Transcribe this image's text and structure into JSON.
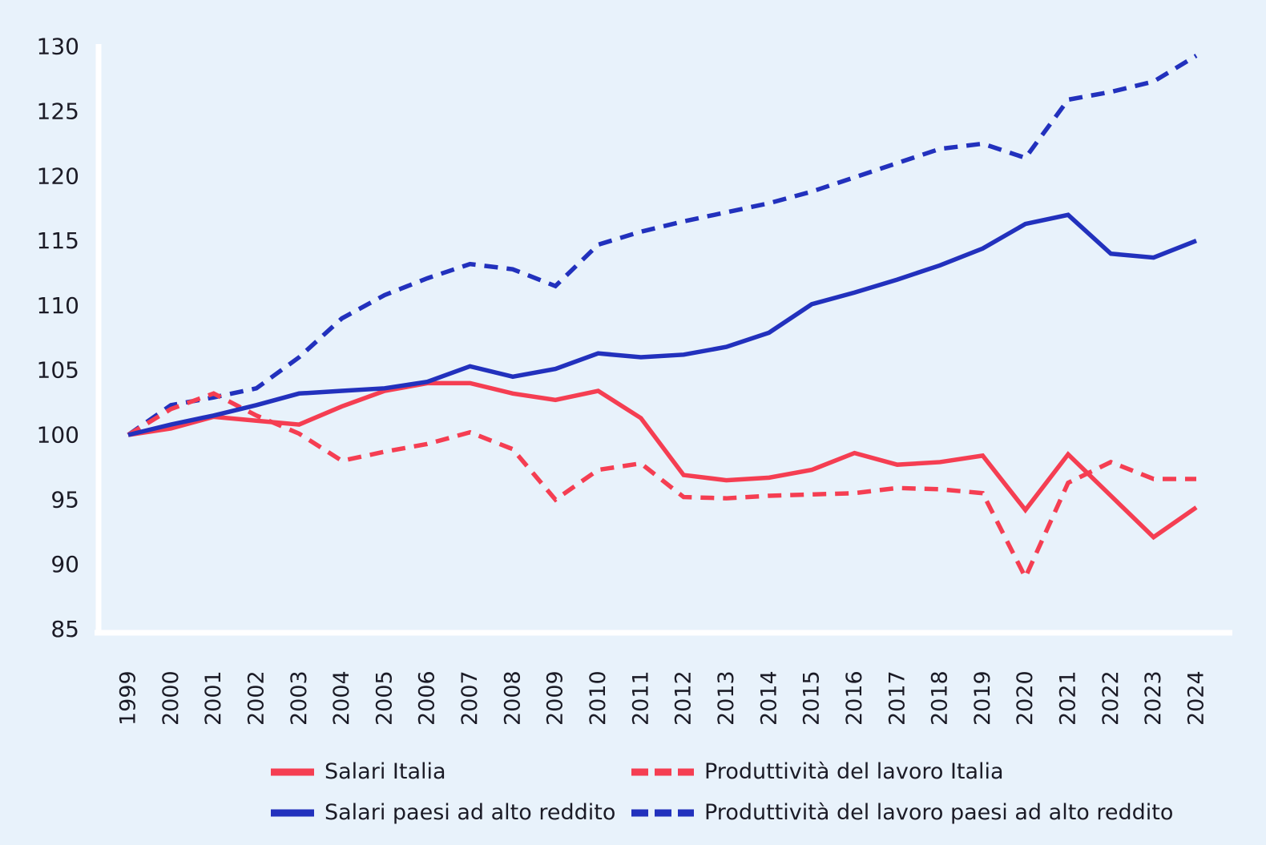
{
  "figure": {
    "background_color": "#e8f2fb",
    "axis_line_color": "#ffffff",
    "text_color": "#1b1b26",
    "red_color": "#f53e52",
    "blue_color": "#2231bd"
  },
  "axes": {
    "y_ticks": [
      130,
      125,
      120,
      115,
      110,
      105,
      100,
      95,
      90,
      85
    ],
    "ylim": [
      85,
      130
    ],
    "grid": false,
    "legend_position": "bottom"
  },
  "chart_data": {
    "type": "line",
    "title": "",
    "xlabel": "",
    "ylabel": "",
    "x": [
      1999,
      2000,
      2001,
      2002,
      2003,
      2004,
      2005,
      2006,
      2007,
      2008,
      2009,
      2010,
      2011,
      2012,
      2013,
      2014,
      2015,
      2016,
      2017,
      2018,
      2019,
      2020,
      2021,
      2022,
      2023,
      2024
    ],
    "ylim": [
      85,
      130
    ],
    "series": [
      {
        "name": "Salari Italia",
        "color": "#f53e52",
        "style": "solid",
        "values": [
          100,
          100.5,
          101.4,
          101.1,
          100.8,
          102.2,
          103.4,
          104.0,
          104.0,
          103.2,
          102.7,
          103.4,
          101.3,
          96.9,
          96.5,
          96.7,
          97.3,
          98.6,
          97.7,
          97.9,
          98.4,
          94.2,
          98.5,
          95.3,
          92.1,
          94.4
        ]
      },
      {
        "name": "Produttività del lavoro Italia",
        "color": "#f53e52",
        "style": "dashed",
        "values": [
          100,
          102.0,
          103.2,
          101.5,
          100.1,
          98.0,
          98.7,
          99.3,
          100.2,
          98.9,
          95.0,
          97.3,
          97.8,
          95.2,
          95.1,
          95.3,
          95.4,
          95.5,
          95.9,
          95.8,
          95.5,
          89.0,
          96.3,
          97.9,
          96.6,
          96.6
        ]
      },
      {
        "name": "Salari paesi ad alto reddito",
        "color": "#2231bd",
        "style": "solid",
        "values": [
          100,
          100.8,
          101.5,
          102.3,
          103.2,
          103.4,
          103.6,
          104.1,
          105.3,
          104.5,
          105.1,
          106.3,
          106.0,
          106.2,
          106.8,
          107.9,
          110.1,
          111.0,
          112.0,
          113.1,
          114.4,
          116.3,
          117.0,
          114.0,
          113.7,
          115.0
        ]
      },
      {
        "name": "Produttività del lavoro paesi ad alto reddito",
        "color": "#2231bd",
        "style": "dashed",
        "values": [
          100,
          102.3,
          102.9,
          103.6,
          106.0,
          109.0,
          110.8,
          112.1,
          113.2,
          112.8,
          111.5,
          114.7,
          115.7,
          116.5,
          117.2,
          117.9,
          118.8,
          119.9,
          121.0,
          122.1,
          122.5,
          121.4,
          125.9,
          126.5,
          127.3,
          129.3
        ]
      }
    ]
  }
}
